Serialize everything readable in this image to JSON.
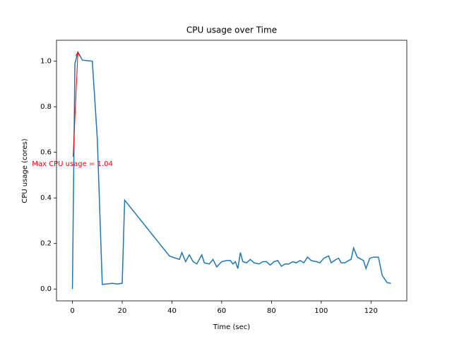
{
  "chart_data": {
    "type": "line",
    "title": "CPU usage over Time",
    "x_label": "Time (sec)",
    "y_label": "CPU usage (cores)",
    "x": [
      0,
      1,
      2.2,
      4,
      8,
      10,
      12,
      16,
      18,
      20,
      21,
      39,
      43,
      44,
      45.5,
      47,
      48.5,
      50,
      52,
      53,
      55,
      56.5,
      58,
      60,
      62,
      63.5,
      64.5,
      65.5,
      66.5,
      67.5,
      68.5,
      70,
      71.5,
      73,
      75,
      76.5,
      78,
      79.5,
      81,
      82.5,
      84,
      85.5,
      87,
      88.5,
      90,
      91.5,
      93,
      94.5,
      96,
      98,
      99.5,
      101,
      103,
      104,
      106,
      107,
      108,
      109.5,
      111,
      112,
      113,
      114.5,
      117,
      118,
      119.5,
      121,
      123,
      124.5,
      126.5,
      128
    ],
    "series": [
      {
        "name": "CPU usage",
        "color": "#1f77b4",
        "values": [
          0.0,
          0.99,
          1.04,
          1.005,
          1.0,
          0.66,
          0.02,
          0.025,
          0.022,
          0.025,
          0.39,
          0.145,
          0.13,
          0.16,
          0.12,
          0.15,
          0.12,
          0.11,
          0.15,
          0.115,
          0.11,
          0.13,
          0.097,
          0.12,
          0.125,
          0.125,
          0.11,
          0.12,
          0.09,
          0.16,
          0.12,
          0.115,
          0.13,
          0.115,
          0.11,
          0.12,
          0.12,
          0.105,
          0.12,
          0.125,
          0.1,
          0.11,
          0.11,
          0.12,
          0.115,
          0.125,
          0.115,
          0.14,
          0.125,
          0.12,
          0.115,
          0.135,
          0.145,
          0.115,
          0.13,
          0.135,
          0.115,
          0.115,
          0.125,
          0.13,
          0.18,
          0.14,
          0.125,
          0.09,
          0.135,
          0.14,
          0.14,
          0.06,
          0.028,
          0.025
        ]
      }
    ],
    "xlim": [
      -6.4,
      134.4
    ],
    "ylim": [
      -0.052,
      1.092
    ],
    "xticks": [
      0,
      20,
      40,
      60,
      80,
      100,
      120
    ],
    "yticks": [
      {
        "value": 0,
        "label": "0.0"
      },
      0.2,
      0.4,
      0.6,
      0.8,
      {
        "value": 1,
        "label": "1.0"
      }
    ],
    "annotation": {
      "text": "Max CPU usage = 1.04",
      "color": "red",
      "x": 2.2,
      "y": 1.04,
      "text_x": 0,
      "text_y": 0.55
    }
  }
}
